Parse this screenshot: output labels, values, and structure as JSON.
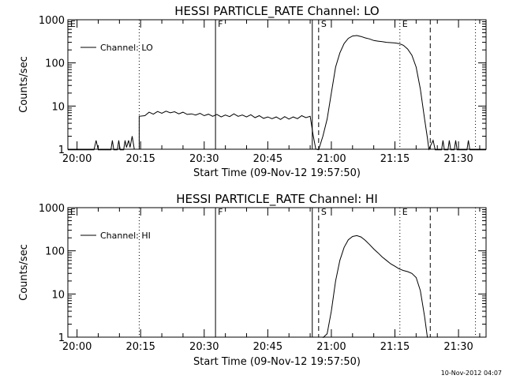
{
  "chart_data": [
    {
      "type": "line",
      "title": "HESSI PARTICLE_RATE Channel: LO",
      "xlabel": "Start Time (09-Nov-12 19:57:50)",
      "ylabel": "Counts/sec",
      "yscale": "log",
      "xlim": [
        "19:57:50",
        "21:36:30"
      ],
      "ylim": [
        1,
        1000
      ],
      "x_tick_labels": [
        "20:00",
        "20:15",
        "20:30",
        "20:45",
        "21:00",
        "21:15",
        "21:30"
      ],
      "y_tick_labels": [
        "1",
        "10",
        "100",
        "1000"
      ],
      "legend": {
        "position": "top-left",
        "entries": [
          "Channel: LO"
        ]
      },
      "markers": [
        {
          "label": "E",
          "time": "19:57:50",
          "style": "dotted"
        },
        {
          "label": "",
          "time": "20:14:40",
          "style": "dotted"
        },
        {
          "label": "F",
          "time": "20:32:40",
          "style": "solid"
        },
        {
          "label": "",
          "time": "20:55:30",
          "style": "solid"
        },
        {
          "label": "S",
          "time": "20:57:00",
          "style": "dashed"
        },
        {
          "label": "E",
          "time": "21:16:10",
          "style": "dotted"
        },
        {
          "label": "",
          "time": "21:23:20",
          "style": "dashed"
        },
        {
          "label": "",
          "time": "21:34:00",
          "style": "dotted"
        }
      ],
      "series": [
        {
          "name": "Channel: LO",
          "points": [
            [
              "19:57:50",
              0.9
            ],
            [
              "20:04:00",
              0.9
            ],
            [
              "20:04:30",
              1.6
            ],
            [
              "20:05:00",
              0.9
            ],
            [
              "20:08:00",
              0.9
            ],
            [
              "20:08:20",
              1.6
            ],
            [
              "20:08:40",
              0.9
            ],
            [
              "20:09:30",
              0.9
            ],
            [
              "20:09:50",
              1.6
            ],
            [
              "20:10:10",
              0.9
            ],
            [
              "20:11:00",
              0.9
            ],
            [
              "20:11:20",
              1.6
            ],
            [
              "20:11:40",
              1.1
            ],
            [
              "20:12:10",
              1.6
            ],
            [
              "20:12:30",
              1.1
            ],
            [
              "20:13:00",
              2.0
            ],
            [
              "20:13:30",
              1.0
            ],
            [
              "20:14:00",
              1.0
            ],
            [
              "20:14:40",
              1.0
            ],
            [
              "20:14:40",
              5.8
            ],
            [
              "20:16:00",
              6.0
            ],
            [
              "20:17:00",
              7.2
            ],
            [
              "20:18:00",
              6.5
            ],
            [
              "20:19:00",
              7.5
            ],
            [
              "20:20:00",
              6.8
            ],
            [
              "20:21:00",
              7.6
            ],
            [
              "20:22:00",
              7.0
            ],
            [
              "20:23:00",
              7.4
            ],
            [
              "20:24:00",
              6.6
            ],
            [
              "20:25:00",
              7.2
            ],
            [
              "20:26:00",
              6.4
            ],
            [
              "20:27:00",
              6.6
            ],
            [
              "20:28:00",
              6.2
            ],
            [
              "20:29:00",
              6.8
            ],
            [
              "20:30:00",
              6.0
            ],
            [
              "20:31:00",
              6.5
            ],
            [
              "20:32:00",
              5.8
            ],
            [
              "20:33:00",
              6.4
            ],
            [
              "20:34:00",
              5.6
            ],
            [
              "20:35:00",
              6.2
            ],
            [
              "20:36:00",
              5.7
            ],
            [
              "20:37:00",
              6.6
            ],
            [
              "20:38:00",
              5.8
            ],
            [
              "20:39:00",
              6.2
            ],
            [
              "20:40:00",
              5.6
            ],
            [
              "20:41:00",
              6.3
            ],
            [
              "20:42:00",
              5.4
            ],
            [
              "20:43:00",
              6.0
            ],
            [
              "20:44:00",
              5.2
            ],
            [
              "20:45:00",
              5.6
            ],
            [
              "20:46:00",
              5.1
            ],
            [
              "20:47:00",
              5.6
            ],
            [
              "20:48:00",
              4.9
            ],
            [
              "20:49:00",
              5.7
            ],
            [
              "20:50:00",
              5.0
            ],
            [
              "20:51:00",
              5.6
            ],
            [
              "20:52:00",
              5.1
            ],
            [
              "20:53:00",
              6.0
            ],
            [
              "20:54:00",
              5.4
            ],
            [
              "20:55:00",
              5.8
            ],
            [
              "20:55:40",
              2.2
            ],
            [
              "20:56:20",
              1.0
            ],
            [
              "20:57:00",
              0.9
            ],
            [
              "20:58:00",
              2.0
            ],
            [
              "20:59:00",
              5.0
            ],
            [
              "21:00:00",
              20
            ],
            [
              "21:01:00",
              80
            ],
            [
              "21:02:00",
              170
            ],
            [
              "21:03:00",
              280
            ],
            [
              "21:04:00",
              370
            ],
            [
              "21:05:00",
              420
            ],
            [
              "21:06:00",
              430
            ],
            [
              "21:07:00",
              410
            ],
            [
              "21:08:00",
              380
            ],
            [
              "21:09:00",
              360
            ],
            [
              "21:10:00",
              330
            ],
            [
              "21:11:00",
              320
            ],
            [
              "21:12:00",
              310
            ],
            [
              "21:13:00",
              300
            ],
            [
              "21:14:00",
              295
            ],
            [
              "21:15:00",
              290
            ],
            [
              "21:16:00",
              280
            ],
            [
              "21:17:00",
              255
            ],
            [
              "21:18:00",
              210
            ],
            [
              "21:19:00",
              150
            ],
            [
              "21:20:00",
              80
            ],
            [
              "21:21:00",
              25
            ],
            [
              "21:22:00",
              5
            ],
            [
              "21:22:40",
              1.8
            ],
            [
              "21:23:00",
              1.0
            ],
            [
              "21:24:00",
              1.6
            ],
            [
              "21:24:30",
              0.9
            ],
            [
              "21:26:00",
              0.9
            ],
            [
              "21:26:20",
              1.6
            ],
            [
              "21:26:40",
              0.9
            ],
            [
              "21:27:30",
              0.9
            ],
            [
              "21:27:50",
              1.6
            ],
            [
              "21:28:10",
              0.9
            ],
            [
              "21:29:00",
              0.9
            ],
            [
              "21:29:20",
              1.6
            ],
            [
              "21:29:40",
              0.9
            ],
            [
              "21:32:00",
              0.9
            ],
            [
              "21:32:20",
              1.6
            ],
            [
              "21:32:40",
              0.9
            ],
            [
              "21:36:30",
              0.9
            ]
          ]
        }
      ]
    },
    {
      "type": "line",
      "title": "HESSI PARTICLE_RATE Channel: HI",
      "xlabel": "Start Time (09-Nov-12 19:57:50)",
      "ylabel": "Counts/sec",
      "yscale": "log",
      "xlim": [
        "19:57:50",
        "21:36:30"
      ],
      "ylim": [
        1,
        1000
      ],
      "x_tick_labels": [
        "20:00",
        "20:15",
        "20:30",
        "20:45",
        "21:00",
        "21:15",
        "21:30"
      ],
      "y_tick_labels": [
        "1",
        "10",
        "100",
        "1000"
      ],
      "legend": {
        "position": "top-left",
        "entries": [
          "Channel: HI"
        ]
      },
      "markers": [
        {
          "label": "E",
          "time": "19:57:50",
          "style": "dotted"
        },
        {
          "label": "",
          "time": "20:14:40",
          "style": "dotted"
        },
        {
          "label": "F",
          "time": "20:32:40",
          "style": "solid"
        },
        {
          "label": "",
          "time": "20:55:30",
          "style": "solid"
        },
        {
          "label": "S",
          "time": "20:57:00",
          "style": "dashed"
        },
        {
          "label": "E",
          "time": "21:16:10",
          "style": "dotted"
        },
        {
          "label": "",
          "time": "21:23:20",
          "style": "dashed"
        },
        {
          "label": "",
          "time": "21:34:00",
          "style": "dotted"
        }
      ],
      "series": [
        {
          "name": "Channel: HI",
          "points": [
            [
              "20:58:00",
              0.8
            ],
            [
              "20:59:00",
              1.2
            ],
            [
              "21:00:00",
              4
            ],
            [
              "21:01:00",
              20
            ],
            [
              "21:02:00",
              60
            ],
            [
              "21:03:00",
              120
            ],
            [
              "21:04:00",
              180
            ],
            [
              "21:05:00",
              215
            ],
            [
              "21:06:00",
              225
            ],
            [
              "21:07:00",
              210
            ],
            [
              "21:08:00",
              175
            ],
            [
              "21:09:00",
              140
            ],
            [
              "21:10:00",
              110
            ],
            [
              "21:11:00",
              90
            ],
            [
              "21:12:00",
              72
            ],
            [
              "21:13:00",
              60
            ],
            [
              "21:14:00",
              50
            ],
            [
              "21:15:00",
              44
            ],
            [
              "21:16:00",
              38
            ],
            [
              "21:17:00",
              35
            ],
            [
              "21:18:00",
              33
            ],
            [
              "21:19:00",
              30
            ],
            [
              "21:20:00",
              24
            ],
            [
              "21:21:00",
              12
            ],
            [
              "21:22:00",
              3
            ],
            [
              "21:22:40",
              0.9
            ]
          ]
        }
      ]
    }
  ],
  "footer": {
    "timestamp": "10-Nov-2012 04:07"
  }
}
